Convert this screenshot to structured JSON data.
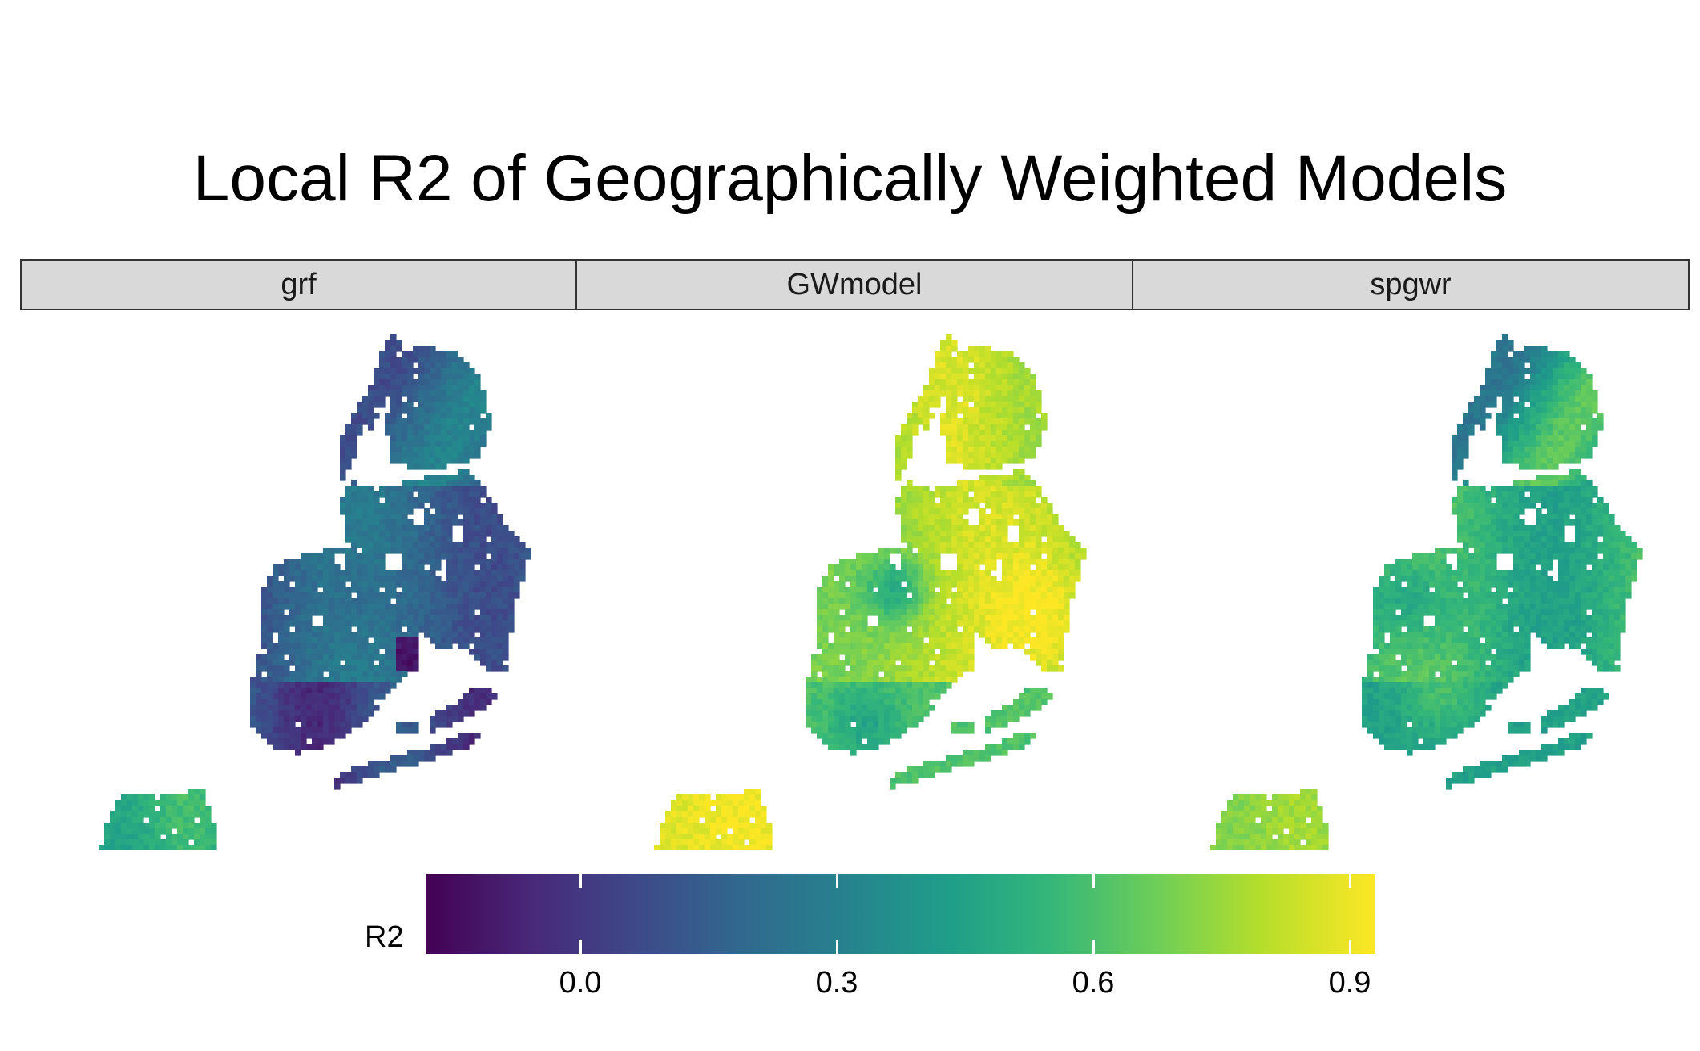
{
  "title": "Local R2 of Geographically Weighted Models",
  "panels": [
    {
      "label": "grf",
      "palette": "low"
    },
    {
      "label": "GWmodel",
      "palette": "high"
    },
    {
      "label": "spgwr",
      "palette": "mid"
    }
  ],
  "legend": {
    "title": "R2",
    "min": -0.18,
    "max": 0.93,
    "ticks": [
      {
        "value": 0.0,
        "label": "0.0"
      },
      {
        "value": 0.3,
        "label": "0.3"
      },
      {
        "value": 0.6,
        "label": "0.6"
      },
      {
        "value": 0.9,
        "label": "0.9"
      }
    ],
    "colors": [
      "#440154",
      "#482878",
      "#3e4989",
      "#31688e",
      "#26828e",
      "#1f9e89",
      "#35b779",
      "#6ece58",
      "#b5de2b",
      "#fde725"
    ]
  }
}
